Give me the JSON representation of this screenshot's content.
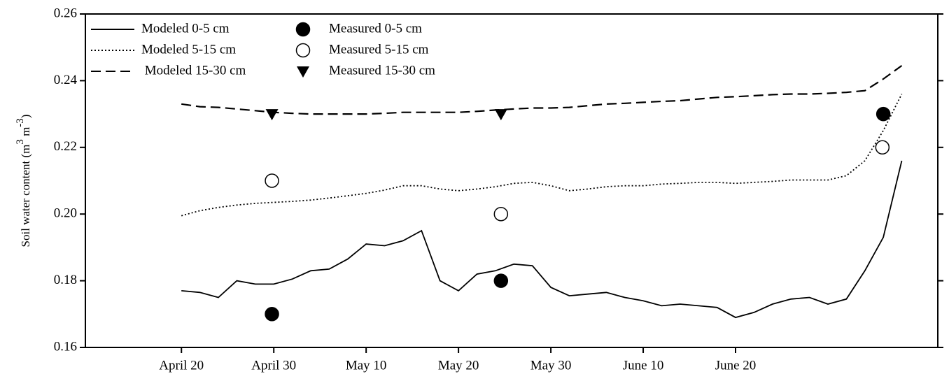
{
  "chart_data": {
    "type": "line",
    "ylabel": [
      "Soil water content (m",
      "3",
      " m",
      "-3",
      ")"
    ],
    "x": [
      0,
      2,
      4,
      6,
      8,
      10,
      12,
      14,
      16,
      18,
      20,
      22,
      24,
      26,
      28,
      30,
      32,
      34,
      36,
      38,
      40,
      42,
      44,
      46,
      48,
      50,
      52,
      54,
      56,
      58,
      60,
      62,
      64,
      66,
      68,
      70,
      72,
      74,
      76,
      78
    ],
    "xlim": [
      -10.4,
      81.9
    ],
    "xticks": [
      {
        "value": 0,
        "label": "April 20"
      },
      {
        "value": 10,
        "label": "April 30"
      },
      {
        "value": 20,
        "label": "May 10"
      },
      {
        "value": 30,
        "label": "May 20"
      },
      {
        "value": 40,
        "label": "May 30"
      },
      {
        "value": 50,
        "label": "June 10"
      },
      {
        "value": 60,
        "label": "June 20"
      }
    ],
    "ylim": [
      0.16,
      0.26
    ],
    "yticks": [
      0.16,
      0.18,
      {
        "value": 0.2,
        "label": "0.20"
      },
      0.22,
      0.24,
      0.26
    ],
    "legend": "upper-left",
    "series": [
      {
        "name": "Modeled 0-5 cm",
        "color": "#000000",
        "dash": "solid",
        "values": [
          0.177,
          0.1765,
          0.175,
          0.18,
          0.179,
          0.179,
          0.1805,
          0.183,
          0.1835,
          0.1865,
          0.191,
          0.1905,
          0.192,
          0.195,
          0.18,
          0.177,
          0.182,
          0.183,
          0.185,
          0.1845,
          0.178,
          0.1755,
          0.176,
          0.1765,
          0.175,
          0.174,
          0.1725,
          0.173,
          0.1725,
          0.172,
          0.169,
          0.1705,
          0.173,
          0.1745,
          0.175,
          0.173,
          0.1745,
          0.183,
          0.193,
          0.216
        ]
      },
      {
        "name": "Modeled 5-15 cm",
        "color": "#000000",
        "dash": "dotted",
        "values": [
          0.1995,
          0.201,
          0.202,
          0.2027,
          0.2032,
          0.2035,
          0.2038,
          0.2042,
          0.2048,
          0.2055,
          0.2062,
          0.2072,
          0.2085,
          0.2085,
          0.2075,
          0.207,
          0.2075,
          0.2082,
          0.2092,
          0.2095,
          0.2085,
          0.207,
          0.2075,
          0.2082,
          0.2085,
          0.2085,
          0.209,
          0.2092,
          0.2095,
          0.2095,
          0.2092,
          0.2095,
          0.2098,
          0.2102,
          0.2102,
          0.2102,
          0.2115,
          0.216,
          0.225,
          0.236
        ]
      },
      {
        "name": " Modeled 15-30 cm",
        "color": "#000000",
        "dash": "dashed",
        "values": [
          0.233,
          0.2322,
          0.232,
          0.2315,
          0.231,
          0.2305,
          0.2302,
          0.23,
          0.23,
          0.23,
          0.23,
          0.2302,
          0.2305,
          0.2305,
          0.2305,
          0.2305,
          0.2308,
          0.2312,
          0.2315,
          0.2318,
          0.2318,
          0.232,
          0.2325,
          0.233,
          0.2332,
          0.2335,
          0.2338,
          0.234,
          0.2345,
          0.235,
          0.2352,
          0.2355,
          0.2358,
          0.236,
          0.236,
          0.2362,
          0.2365,
          0.237,
          0.2405,
          0.2445
        ]
      },
      {
        "name": "Measured 0-5 cm",
        "color": "#000000",
        "marker": "filled-circle",
        "x": [
          9.8,
          34.6,
          76
        ],
        "values": [
          0.17,
          0.18,
          0.23
        ]
      },
      {
        "name": "Measured 5-15 cm",
        "color": "#000000",
        "marker": "open-circle",
        "x": [
          9.8,
          34.6,
          75.9
        ],
        "values": [
          0.21,
          0.2,
          0.22
        ]
      },
      {
        "name": "Measured 15-30 cm",
        "color": "#000000",
        "marker": "triangle",
        "x": [
          9.8,
          34.6
        ],
        "values": [
          0.23,
          0.23
        ]
      }
    ]
  }
}
